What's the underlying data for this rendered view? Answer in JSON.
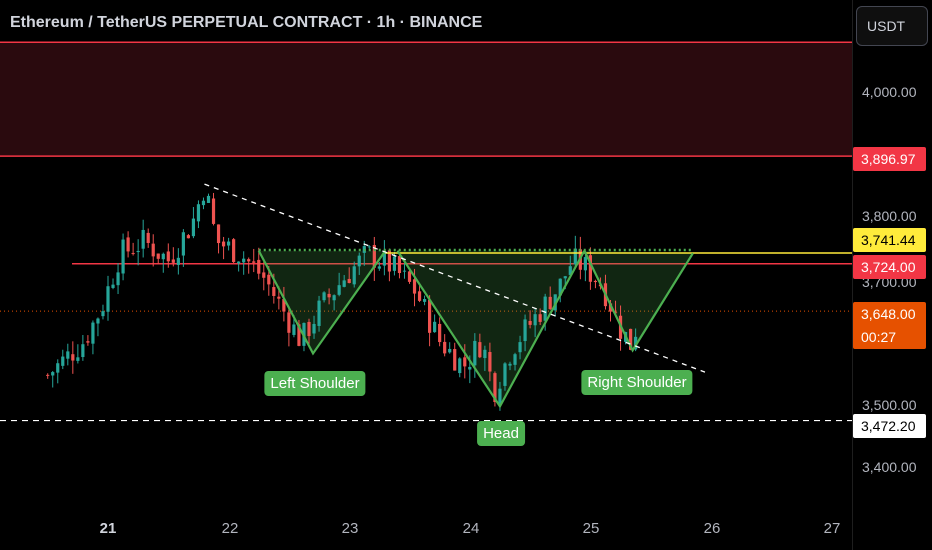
{
  "header": {
    "title": "Ethereum / TetherUS PERPETUAL CONTRACT · 1h · BINANCE"
  },
  "toolbar": {
    "currency": "USDT"
  },
  "colors": {
    "background": "#000000",
    "up": "#26a69a",
    "down": "#ef5350",
    "resistance_zone": "#2a0a0e",
    "pattern": "#4caf50",
    "neckline": "#ffeb3b",
    "price_badge": "#e65100"
  },
  "chart_data": {
    "type": "candlestick",
    "symbol": "ETHUSDT.P",
    "interval": "1h",
    "ylim": [
      3370,
      4100
    ],
    "y_ticks": [
      "4,000.00",
      "3,800.00",
      "3,700.00",
      "3,500.00",
      "3,400.00"
    ],
    "x_ticks": [
      "21",
      "22",
      "23",
      "24",
      "25",
      "26",
      "27"
    ],
    "close_path": [
      [
        20.5,
        3545
      ],
      [
        20.8,
        3600
      ],
      [
        20.95,
        3655
      ],
      [
        21.1,
        3740
      ],
      [
        21.3,
        3760
      ],
      [
        21.5,
        3730
      ],
      [
        21.7,
        3790
      ],
      [
        21.8,
        3850
      ],
      [
        21.9,
        3760
      ],
      [
        22.1,
        3740
      ],
      [
        22.3,
        3700
      ],
      [
        22.45,
        3650
      ],
      [
        22.6,
        3600
      ],
      [
        22.75,
        3650
      ],
      [
        22.95,
        3700
      ],
      [
        23.15,
        3740
      ],
      [
        23.35,
        3720
      ],
      [
        23.55,
        3680
      ],
      [
        23.75,
        3600
      ],
      [
        23.95,
        3560
      ],
      [
        24.1,
        3600
      ],
      [
        24.2,
        3520
      ],
      [
        24.35,
        3590
      ],
      [
        24.55,
        3640
      ],
      [
        24.75,
        3690
      ],
      [
        24.85,
        3730
      ],
      [
        24.95,
        3720
      ],
      [
        25.1,
        3690
      ],
      [
        25.25,
        3620
      ],
      [
        25.35,
        3590
      ],
      [
        25.4,
        3648
      ]
    ],
    "levels": [
      {
        "label": "3,896.97",
        "value": 3896.97,
        "style": "resistance"
      },
      {
        "label": "3,741.44",
        "value": 3741.44,
        "style": "neckline"
      },
      {
        "label": "3,724.00",
        "value": 3724.0,
        "style": "support"
      },
      {
        "label": "3,648.00",
        "value": 3648.0,
        "style": "last-price"
      },
      {
        "label": "3,472.20",
        "value": 3472.2,
        "style": "target"
      }
    ],
    "last_price": {
      "value": "3,648.00",
      "countdown": "00:27"
    },
    "resistance_zone": [
      3896.97,
      4080
    ],
    "trendline": [
      [
        21.8,
        3852
      ],
      [
        25.95,
        3550
      ]
    ],
    "pattern": {
      "name": "Inverse Head and Shoulders",
      "labels": [
        "Left Shoulder",
        "Head",
        "Right Shoulder"
      ],
      "left_shoulder": [
        [
          22.25,
          3745
        ],
        [
          22.7,
          3580
        ],
        [
          23.3,
          3745
        ]
      ],
      "head": [
        [
          23.4,
          3745
        ],
        [
          24.25,
          3495
        ],
        [
          24.95,
          3745
        ]
      ],
      "right_shoulder": [
        [
          24.95,
          3745
        ],
        [
          25.35,
          3585
        ],
        [
          25.85,
          3741
        ]
      ]
    }
  }
}
